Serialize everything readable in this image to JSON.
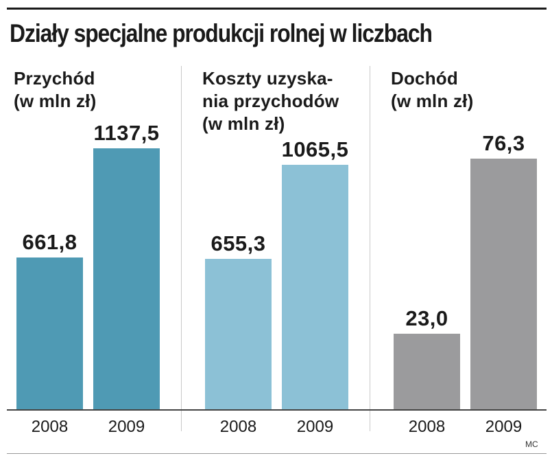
{
  "title": "Działy specjalne produkcji rolnej w liczbach",
  "credit": "MC",
  "colors": {
    "revenue": "#4f9ab4",
    "costs": "#8cc1d6",
    "income": "#9b9b9d"
  },
  "chart_data": [
    {
      "type": "bar",
      "title": "Przychód\n(w mln zł)",
      "categories": [
        "2008",
        "2009"
      ],
      "values": [
        661.8,
        1137.5
      ],
      "value_labels": [
        "661,8",
        "1137,5"
      ],
      "ylim": [
        0,
        1137.5
      ],
      "color": "#4f9ab4",
      "grid": false
    },
    {
      "type": "bar",
      "title": "Koszty uzyska-\nnia przychodów\n(w mln zł)",
      "categories": [
        "2008",
        "2009"
      ],
      "values": [
        655.3,
        1065.5
      ],
      "value_labels": [
        "655,3",
        "1065,5"
      ],
      "ylim": [
        0,
        1137.5
      ],
      "color": "#8cc1d6",
      "grid": false
    },
    {
      "type": "bar",
      "title": "Dochód\n(w mln zł)",
      "categories": [
        "2008",
        "2009"
      ],
      "values": [
        23.0,
        76.3
      ],
      "value_labels": [
        "23,0",
        "76,3"
      ],
      "ylim": [
        0,
        79.5
      ],
      "color": "#9b9b9d",
      "grid": false
    }
  ]
}
